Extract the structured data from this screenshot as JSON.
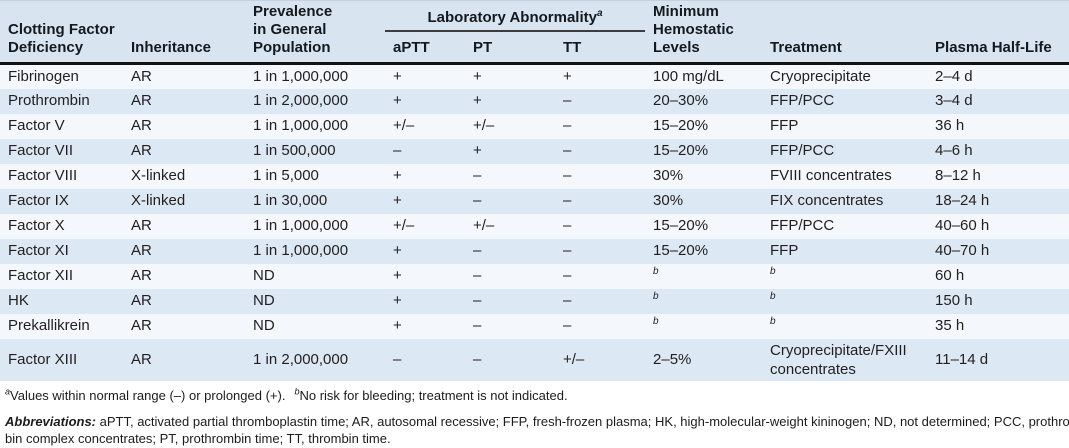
{
  "colors": {
    "header_bg": "#d8e5f1",
    "row_light": "#f4f7fb",
    "row_dark": "#dce8f4",
    "heavy_divider": "#121212",
    "lab_rule": "#3d3d3d",
    "text": "#231f20"
  },
  "table": {
    "header": {
      "deficiency": "Clotting Factor\nDeficiency",
      "inheritance": "Inheritance",
      "prevalence": "Prevalence\nin General\nPopulation",
      "lab_group": "Laboratory Abnormality",
      "lab_group_sup": "a",
      "aptt": "aPTT",
      "pt": "PT",
      "tt": "TT",
      "min_hemostatic": "Minimum\nHemostatic\nLevels",
      "treatment": "Treatment",
      "half_life": "Plasma Half-Life"
    },
    "column_keys": [
      "deficiency",
      "inheritance",
      "prevalence",
      "aptt",
      "pt",
      "tt",
      "min_hemostatic",
      "treatment",
      "half_life"
    ],
    "rows": [
      [
        "Fibrinogen",
        "AR",
        "1 in 1,000,000",
        "+",
        "+",
        "+",
        "100 mg/dL",
        "Cryoprecipitate",
        "2–4 d"
      ],
      [
        "Prothrombin",
        "AR",
        "1 in 2,000,000",
        "+",
        "+",
        "–",
        "20–30%",
        "FFP/PCC",
        "3–4 d"
      ],
      [
        "Factor V",
        "AR",
        "1 in 1,000,000",
        "+/–",
        "+/–",
        "–",
        "15–20%",
        "FFP",
        "36 h"
      ],
      [
        "Factor VII",
        "AR",
        "1 in 500,000",
        "–",
        "+",
        "–",
        "15–20%",
        "FFP/PCC",
        "4–6 h"
      ],
      [
        "Factor VIII",
        "X-linked",
        "1 in 5,000",
        "+",
        "–",
        "–",
        "30%",
        "FVIII concentrates",
        "8–12 h"
      ],
      [
        "Factor IX",
        "X-linked",
        "1 in 30,000",
        "+",
        "–",
        "–",
        "30%",
        "FIX concentrates",
        "18–24 h"
      ],
      [
        "Factor X",
        "AR",
        "1 in 1,000,000",
        "+/–",
        "+/–",
        "–",
        "15–20%",
        "FFP/PCC",
        "40–60 h"
      ],
      [
        "Factor XI",
        "AR",
        "1 in 1,000,000",
        "+",
        "–",
        "–",
        "15–20%",
        "FFP",
        "40–70 h"
      ],
      [
        "Factor XII",
        "AR",
        "ND",
        "+",
        "–",
        "–",
        "^b",
        "^b",
        "60 h"
      ],
      [
        "HK",
        "AR",
        "ND",
        "+",
        "–",
        "–",
        "^b",
        "^b",
        "150 h"
      ],
      [
        "Prekallikrein",
        "AR",
        "ND",
        "+",
        "–",
        "–",
        "^b",
        "^b",
        "35 h"
      ],
      [
        "Factor XIII",
        "AR",
        "1 in 2,000,000",
        "–",
        "–",
        "+/–",
        "2–5%",
        "Cryoprecipitate/FXIII\nconcentrates",
        "11–14 d"
      ]
    ]
  },
  "footnotes": {
    "note_a_marker": "a",
    "note_a": "Values within normal range (–) or prolonged (+).",
    "note_b_marker": "b",
    "note_b": "No risk for bleeding; treatment is not indicated.",
    "abbreviations_label": "Abbreviations:",
    "abbreviations_line1": " aPTT, activated partial thromboplastin time; AR, autosomal recessive; FFP, fresh-frozen plasma; HK, high-molecular-weight kininogen; ND, not determined; PCC, prothrom-",
    "abbreviations_line2": "bin complex concentrates; PT, prothrombin time; TT, thrombin time."
  }
}
